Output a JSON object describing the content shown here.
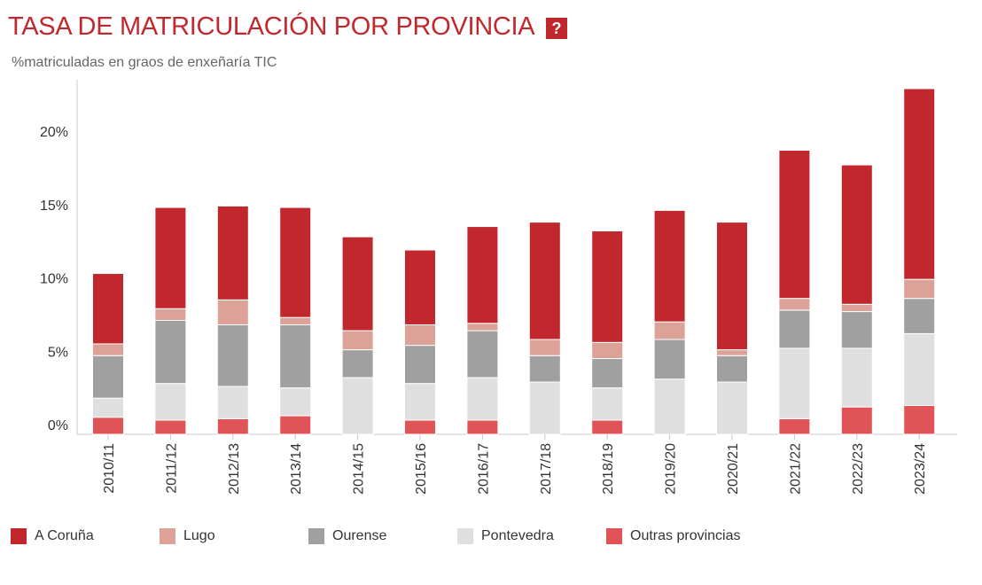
{
  "header": {
    "title": "TASA DE MATRICULACIÓN POR PROVINCIA",
    "help_label": "?"
  },
  "chart_data": {
    "type": "bar",
    "stacked": true,
    "title": "TASA DE MATRICULACIÓN POR PROVINCIA",
    "subtitle": "%matriculadas en graos de enxeñaría TIC",
    "xlabel": "",
    "ylabel": "%matriculadas en graos de enxeñaría TIC",
    "ylim": [
      -0.6,
      24
    ],
    "yticks": [
      0,
      5,
      10,
      15,
      20
    ],
    "ytick_labels": [
      "0%",
      "5%",
      "10%",
      "15%",
      "20%"
    ],
    "grid": false,
    "legend_position": "bottom",
    "categories": [
      "2010/11",
      "2011/12",
      "2012/13",
      "2013/14",
      "2014/15",
      "2015/16",
      "2016/17",
      "2017/18",
      "2018/19",
      "2019/20",
      "2020/21",
      "2021/22",
      "2022/23",
      "2023/24"
    ],
    "series": [
      {
        "name": "Outras provincias",
        "color": "#e05356",
        "values": [
          0.5,
          0.3,
          0.4,
          0.6,
          0.0,
          0.3,
          0.3,
          0.0,
          0.3,
          0.0,
          0.0,
          0.4,
          1.2,
          1.3
        ]
      },
      {
        "name": "Pontevedra",
        "color": "#e0dfdf",
        "values": [
          1.3,
          2.5,
          2.2,
          1.9,
          3.2,
          2.5,
          2.9,
          2.9,
          2.2,
          3.1,
          2.9,
          4.8,
          4.0,
          4.9
        ]
      },
      {
        "name": "Ourense",
        "color": "#a0a0a0",
        "values": [
          2.9,
          4.3,
          4.2,
          4.3,
          1.9,
          2.6,
          3.2,
          1.8,
          2.0,
          2.7,
          1.8,
          2.6,
          2.5,
          2.4
        ]
      },
      {
        "name": "Lugo",
        "color": "#dca197",
        "values": [
          0.8,
          0.8,
          1.7,
          0.5,
          1.3,
          1.4,
          0.5,
          1.1,
          1.1,
          1.2,
          0.4,
          0.8,
          0.5,
          1.3
        ]
      },
      {
        "name": "A Coruña",
        "color": "#c0282d",
        "values": [
          4.8,
          6.9,
          6.4,
          7.5,
          6.4,
          5.1,
          6.6,
          8.0,
          7.6,
          7.6,
          8.7,
          10.1,
          9.5,
          13.0
        ]
      }
    ]
  },
  "legend": {
    "items": [
      {
        "label": "A Coruña",
        "color": "#c0282d"
      },
      {
        "label": "Lugo",
        "color": "#dca197"
      },
      {
        "label": "Ourense",
        "color": "#a0a0a0"
      },
      {
        "label": "Pontevedra",
        "color": "#e0dfdf"
      },
      {
        "label": "Outras provincias",
        "color": "#e05356"
      }
    ]
  }
}
